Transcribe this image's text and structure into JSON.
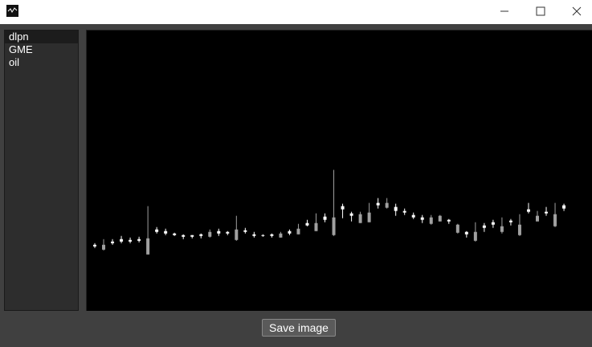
{
  "list": [
    "dlpn",
    "GME",
    "oil"
  ],
  "button": "Save image",
  "chart_data": {
    "type": "candlestick",
    "ylim": [
      0,
      348
    ],
    "up_color": "#ffffff",
    "down_color": "#a0a0a0",
    "open": [
      80,
      82,
      84,
      86,
      86,
      87,
      90,
      98,
      96,
      94,
      92,
      92,
      93,
      98,
      96,
      96,
      101,
      98,
      93,
      93,
      93,
      96,
      96,
      102,
      106,
      109,
      113,
      116,
      126,
      118,
      120,
      122,
      131,
      134,
      124,
      122,
      116,
      113,
      116,
      118,
      111,
      107,
      95,
      98,
      103,
      107,
      105,
      110,
      107,
      123,
      118,
      121,
      120,
      127
    ],
    "high": [
      84,
      89,
      89,
      93,
      91,
      92,
      130,
      104,
      102,
      97,
      95,
      94,
      96,
      101,
      102,
      99,
      118,
      103,
      98,
      95,
      96,
      98,
      101,
      108,
      113,
      121,
      121,
      175,
      133,
      123,
      123,
      134,
      140,
      140,
      133,
      127,
      122,
      119,
      119,
      119,
      114,
      108,
      99,
      110,
      109,
      113,
      116,
      114,
      120,
      134,
      124,
      129,
      134,
      133
    ],
    "low": [
      78,
      75,
      82,
      84,
      84,
      85,
      70,
      96,
      94,
      93,
      89,
      90,
      90,
      91,
      93,
      94,
      87,
      96,
      91,
      92,
      91,
      91,
      94,
      95,
      105,
      99,
      110,
      93,
      115,
      111,
      109,
      110,
      127,
      127,
      118,
      119,
      114,
      109,
      107,
      111,
      108,
      96,
      91,
      86,
      98,
      103,
      96,
      106,
      93,
      121,
      111,
      118,
      104,
      124
    ],
    "close": [
      82,
      76,
      86,
      89,
      88,
      89,
      70,
      101,
      99,
      96,
      94,
      94,
      95,
      92,
      99,
      98,
      88,
      100,
      95,
      94,
      95,
      91,
      99,
      95,
      109,
      99,
      117,
      94,
      130,
      121,
      109,
      110,
      134,
      128,
      129,
      124,
      119,
      116,
      108,
      111,
      113,
      97,
      98,
      87,
      106,
      110,
      98,
      112,
      94,
      126,
      111,
      123,
      105,
      131
    ]
  }
}
